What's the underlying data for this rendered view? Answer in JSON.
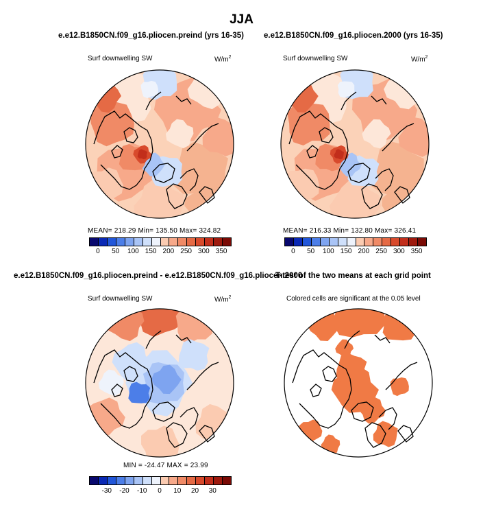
{
  "title": "JJA",
  "panels": [
    {
      "title": "e.e12.B1850CN.f09_g16.pliocen.preind (yrs 16-35)",
      "label": "Surf downwelling SW",
      "units_base": "W/m",
      "units_exp": "2",
      "stats": "MEAN= 218.29   Min= 135.50   Max= 324.82"
    },
    {
      "title": "e.e12.B1850CN.f09_g16.pliocen.2000 (yrs 16-35)",
      "label": "Surf downwelling SW",
      "units_base": "W/m",
      "units_exp": "2",
      "stats": "MEAN= 216.33   Min= 132.80   Max= 326.41"
    },
    {
      "title": "e.e12.B1850CN.f09_g16.pliocen.preind - e.e12.B1850CN.f09_g16.pliocen.2000",
      "label": "Surf downwelling SW",
      "units_base": "W/m",
      "units_exp": "2",
      "stats": "MIN = -24.47  MAX =  23.99"
    },
    {
      "title": "T-test of the two means at each grid point",
      "label": "Colored cells are significant at the 0.05 level"
    }
  ],
  "chart_data": [
    {
      "type": "heatmap",
      "projection": "north polar stereographic",
      "variable": "Surf downwelling SW",
      "units": "W/m2",
      "mean": 218.29,
      "min": 135.5,
      "max": 324.82,
      "colorbar": {
        "levels": [
          0,
          25,
          50,
          75,
          100,
          125,
          150,
          175,
          200,
          225,
          250,
          275,
          300,
          325,
          350
        ],
        "tick_labels": [
          "0",
          "50",
          "100",
          "150",
          "200",
          "250",
          "300",
          "350"
        ]
      }
    },
    {
      "type": "heatmap",
      "projection": "north polar stereographic",
      "variable": "Surf downwelling SW",
      "units": "W/m2",
      "mean": 216.33,
      "min": 132.8,
      "max": 326.41,
      "colorbar": {
        "levels": [
          0,
          25,
          50,
          75,
          100,
          125,
          150,
          175,
          200,
          225,
          250,
          275,
          300,
          325,
          350
        ],
        "tick_labels": [
          "0",
          "50",
          "100",
          "150",
          "200",
          "250",
          "300",
          "350"
        ]
      }
    },
    {
      "type": "heatmap",
      "projection": "north polar stereographic",
      "variable": "Surf downwelling SW difference",
      "units": "W/m2",
      "min": -24.47,
      "max": 23.99,
      "colorbar": {
        "levels": [
          -35,
          -30,
          -25,
          -20,
          -15,
          -10,
          -5,
          0,
          5,
          10,
          15,
          20,
          25,
          30,
          35
        ],
        "tick_labels": [
          "-30",
          "-20",
          "-10",
          "0",
          "10",
          "20",
          "30"
        ]
      }
    },
    {
      "type": "heatmap",
      "projection": "north polar stereographic",
      "variable": "T-test significance",
      "significance_level": 0.05
    }
  ],
  "colors": {
    "scale": [
      "#08086e",
      "#0a29b5",
      "#2156d9",
      "#4c7ee8",
      "#7ea4f0",
      "#a9c4f6",
      "#cfe0fb",
      "#eef3fc",
      "#fde7d9",
      "#fbcbb1",
      "#f7a98a",
      "#f08a66",
      "#e56a45",
      "#d84a2c",
      "#c22e1b",
      "#9e1a0e",
      "#7a0a05"
    ],
    "sig": "#f07a45",
    "coast": "#000000"
  }
}
